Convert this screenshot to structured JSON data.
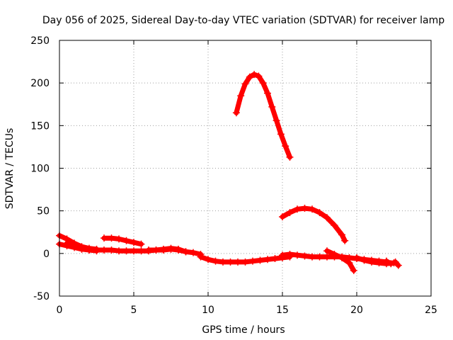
{
  "chart_data": {
    "type": "scatter",
    "title": "Day 056 of 2025, Sidereal Day-to-day VTEC variation (SDTVAR) for receiver lamp",
    "xlabel": "GPS time / hours",
    "ylabel": "SDTVAR / TECUs",
    "xlim": [
      0,
      25
    ],
    "ylim": [
      -50,
      250
    ],
    "xticks": [
      0,
      5,
      10,
      15,
      20,
      25
    ],
    "yticks": [
      -50,
      0,
      50,
      100,
      150,
      200,
      250
    ],
    "grid": true,
    "legend": "none",
    "marker": "+",
    "series_color": "#ff0000",
    "series": [
      {
        "name": "track-1",
        "x": [
          0.0,
          0.5,
          1.0,
          1.5,
          2.0,
          2.5
        ],
        "y": [
          21,
          17,
          12,
          8,
          6,
          5
        ]
      },
      {
        "name": "track-2",
        "x": [
          0.0,
          0.5,
          1.0,
          1.5,
          2.0,
          2.5,
          3.0,
          3.5,
          4.0,
          4.5,
          5.0,
          5.5,
          6.0,
          6.5,
          7.0,
          7.5,
          8.0,
          8.5,
          9.0,
          9.5
        ],
        "y": [
          11,
          9,
          7,
          5,
          4,
          4,
          4,
          4,
          3,
          3,
          3,
          3,
          3,
          4,
          4,
          5,
          4,
          2,
          1,
          -1
        ]
      },
      {
        "name": "track-3",
        "x": [
          0.5,
          1.0,
          1.5,
          2.0,
          2.5
        ],
        "y": [
          12,
          9,
          6,
          4,
          3
        ]
      },
      {
        "name": "track-4",
        "x": [
          3.0,
          3.5,
          4.0,
          4.5,
          5.0,
          5.5
        ],
        "y": [
          18,
          18,
          17,
          15,
          13,
          11
        ]
      },
      {
        "name": "track-5",
        "x": [
          6.0,
          6.5,
          7.0,
          7.5,
          8.0,
          8.5
        ],
        "y": [
          4,
          4,
          5,
          6,
          5,
          2
        ]
      },
      {
        "name": "track-6",
        "x": [
          9.5,
          10.0,
          10.5,
          11.0,
          11.5,
          12.0,
          12.5,
          13.0,
          13.5,
          14.0,
          14.5,
          15.0,
          15.5
        ],
        "y": [
          -4,
          -7,
          -9,
          -10,
          -10,
          -10,
          -10,
          -9,
          -8,
          -7,
          -6,
          -5,
          -4
        ]
      },
      {
        "name": "track-7",
        "x": [
          11.9,
          12.2,
          12.5,
          12.8,
          13.1,
          13.4,
          13.7,
          14.0,
          14.3,
          14.6,
          14.9,
          15.2,
          15.5
        ],
        "y": [
          165,
          185,
          199,
          207,
          210,
          208,
          200,
          188,
          172,
          156,
          140,
          126,
          113
        ]
      },
      {
        "name": "track-8",
        "x": [
          15.0,
          15.5,
          16.0,
          16.5,
          17.0,
          17.5,
          18.0,
          18.5,
          19.0,
          19.2
        ],
        "y": [
          43,
          48,
          52,
          53,
          52,
          48,
          42,
          33,
          22,
          15
        ]
      },
      {
        "name": "track-9",
        "x": [
          15.0,
          15.5,
          16.0,
          16.5,
          17.0,
          17.5,
          18.0,
          18.5,
          19.0,
          19.5,
          20.0,
          20.5,
          21.0,
          21.5,
          22.0
        ],
        "y": [
          -2,
          -1,
          -2,
          -3,
          -4,
          -4,
          -4,
          -4,
          -4,
          -5,
          -6,
          -7,
          -8,
          -9,
          -10
        ]
      },
      {
        "name": "track-10",
        "x": [
          18.0,
          18.5,
          19.0,
          19.5,
          19.8
        ],
        "y": [
          3,
          -1,
          -5,
          -11,
          -20
        ]
      },
      {
        "name": "track-11",
        "x": [
          20.0,
          20.5,
          21.0,
          21.5,
          22.0,
          22.5
        ],
        "y": [
          -5,
          -8,
          -10,
          -11,
          -12,
          -11
        ]
      },
      {
        "name": "track-12",
        "x": [
          22.0,
          22.3,
          22.6,
          22.8
        ],
        "y": [
          -9,
          -12,
          -10,
          -14
        ]
      }
    ]
  }
}
